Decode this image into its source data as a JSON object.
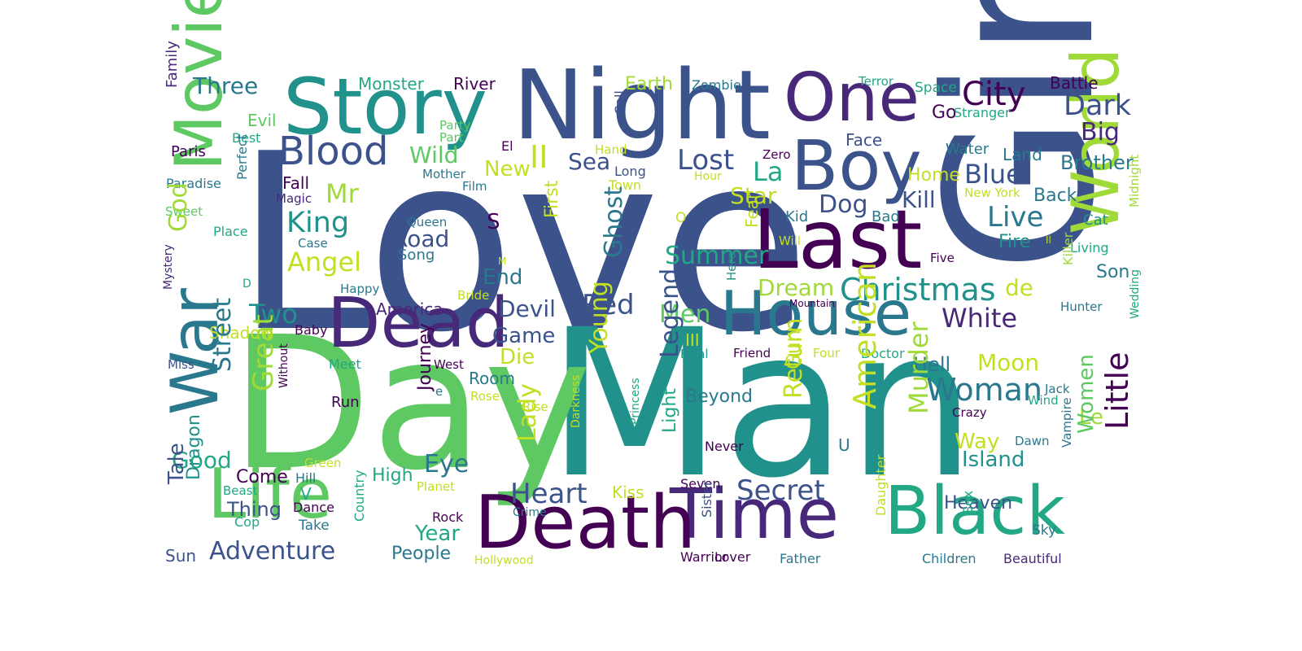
{
  "palette": {
    "p1": "#440154",
    "p2": "#3b528b",
    "p3": "#21918c",
    "p4": "#22a884",
    "p5": "#5ec962",
    "p6": "#a0da39",
    "p7": "#c2df23",
    "p8": "#482878",
    "p9": "#2a788e"
  },
  "words": [
    {
      "text": "Love",
      "color": "p2",
      "v": false
    },
    {
      "text": "Man",
      "color": "p3",
      "v": false
    },
    {
      "text": "Day",
      "color": "p5",
      "v": false
    },
    {
      "text": "Girl",
      "color": "p2",
      "v": true
    },
    {
      "text": "Night",
      "color": "p2",
      "v": false
    },
    {
      "text": "Story",
      "color": "p3",
      "v": false
    },
    {
      "text": "One",
      "color": "p8",
      "v": false
    },
    {
      "text": "Boy",
      "color": "p2",
      "v": false
    },
    {
      "text": "Last",
      "color": "p1",
      "v": false
    },
    {
      "text": "Dead",
      "color": "p8",
      "v": false
    },
    {
      "text": "House",
      "color": "p9",
      "v": false
    },
    {
      "text": "Life",
      "color": "p5",
      "v": false
    },
    {
      "text": "Time",
      "color": "p8",
      "v": false
    },
    {
      "text": "Death",
      "color": "p1",
      "v": false
    },
    {
      "text": "Black",
      "color": "p4",
      "v": false
    },
    {
      "text": "World",
      "color": "p6",
      "v": true
    },
    {
      "text": "Movie",
      "color": "p5",
      "v": true
    },
    {
      "text": "War",
      "color": "p9",
      "v": true
    },
    {
      "text": "Blood",
      "color": "p2",
      "v": false
    },
    {
      "text": "Three",
      "color": "p9",
      "v": false
    },
    {
      "text": "Monster",
      "color": "p4",
      "v": false
    },
    {
      "text": "River",
      "color": "p1",
      "v": false
    },
    {
      "text": "Earth",
      "color": "p6",
      "v": false
    },
    {
      "text": "Zombie",
      "color": "p9",
      "v": false
    },
    {
      "text": "Terror",
      "color": "p4",
      "v": false
    },
    {
      "text": "Space",
      "color": "p4",
      "v": false
    },
    {
      "text": "Battle",
      "color": "p1",
      "v": false
    },
    {
      "text": "City",
      "color": "p1",
      "v": false
    },
    {
      "text": "Dark",
      "color": "p2",
      "v": false
    },
    {
      "text": "Big",
      "color": "p8",
      "v": false
    },
    {
      "text": "Brother",
      "color": "p9",
      "v": false
    },
    {
      "text": "Family",
      "color": "p8",
      "v": true
    },
    {
      "text": "Evil",
      "color": "p5",
      "v": false
    },
    {
      "text": "Best",
      "color": "p4",
      "v": false
    },
    {
      "text": "Paris",
      "color": "p1",
      "v": false
    },
    {
      "text": "Paradise",
      "color": "p9",
      "v": false
    },
    {
      "text": "Sweet",
      "color": "p5",
      "v": false
    },
    {
      "text": "Perfect",
      "color": "p9",
      "v": true
    },
    {
      "text": "Place",
      "color": "p4",
      "v": false
    },
    {
      "text": "God",
      "color": "p6",
      "v": true
    },
    {
      "text": "Mystery",
      "color": "p8",
      "v": true
    },
    {
      "text": "D",
      "color": "p4",
      "v": false
    },
    {
      "text": "Miss",
      "color": "p2",
      "v": false
    },
    {
      "text": "Party",
      "color": "p5",
      "v": false
    },
    {
      "text": "Part",
      "color": "p5",
      "v": false
    },
    {
      "text": "El",
      "color": "p1",
      "v": false
    },
    {
      "text": "Call",
      "color": "p2",
      "v": true
    },
    {
      "text": "Hand",
      "color": "p7",
      "v": false
    },
    {
      "text": "Zero",
      "color": "p1",
      "v": false
    },
    {
      "text": "Face",
      "color": "p2",
      "v": false
    },
    {
      "text": "Go",
      "color": "p1",
      "v": false
    },
    {
      "text": "Stranger",
      "color": "p4",
      "v": false
    },
    {
      "text": "Water",
      "color": "p9",
      "v": false
    },
    {
      "text": "Land",
      "color": "p9",
      "v": false
    },
    {
      "text": "Wild",
      "color": "p5",
      "v": false
    },
    {
      "text": "II",
      "color": "p7",
      "v": false
    },
    {
      "text": "New",
      "color": "p7",
      "v": false
    },
    {
      "text": "Sea",
      "color": "p2",
      "v": false
    },
    {
      "text": "Lost",
      "color": "p2",
      "v": false
    },
    {
      "text": "Long",
      "color": "p2",
      "v": false
    },
    {
      "text": "Mother",
      "color": "p9",
      "v": false
    },
    {
      "text": "Hour",
      "color": "p7",
      "v": false
    },
    {
      "text": "La",
      "color": "p4",
      "v": false
    },
    {
      "text": "Blue",
      "color": "p2",
      "v": false
    },
    {
      "text": "Home",
      "color": "p7",
      "v": false
    },
    {
      "text": "Fall",
      "color": "p1",
      "v": false
    },
    {
      "text": "Magic",
      "color": "p8",
      "v": false
    },
    {
      "text": "Mr",
      "color": "p6",
      "v": false
    },
    {
      "text": "Film",
      "color": "p9",
      "v": false
    },
    {
      "text": "Town",
      "color": "p7",
      "v": false
    },
    {
      "text": "Star",
      "color": "p7",
      "v": false
    },
    {
      "text": "Kill",
      "color": "p2",
      "v": false
    },
    {
      "text": "New York",
      "color": "p7",
      "v": false
    },
    {
      "text": "Back",
      "color": "p9",
      "v": false
    },
    {
      "text": "Dog",
      "color": "p2",
      "v": false
    },
    {
      "text": "King",
      "color": "p3",
      "v": false
    },
    {
      "text": "Queen",
      "color": "p9",
      "v": false
    },
    {
      "text": "S",
      "color": "p1",
      "v": false
    },
    {
      "text": "First",
      "color": "p7",
      "v": true
    },
    {
      "text": "O",
      "color": "p7",
      "v": false
    },
    {
      "text": "Fear",
      "color": "p7",
      "v": true
    },
    {
      "text": "Kid",
      "color": "p9",
      "v": false
    },
    {
      "text": "Bad",
      "color": "p9",
      "v": false
    },
    {
      "text": "Live",
      "color": "p9",
      "v": false
    },
    {
      "text": "Cat",
      "color": "p3",
      "v": false
    },
    {
      "text": "Midnight",
      "color": "p6",
      "v": true
    },
    {
      "text": "Case",
      "color": "p9",
      "v": false
    },
    {
      "text": "Road",
      "color": "p2",
      "v": false
    },
    {
      "text": "Song",
      "color": "p9",
      "v": false
    },
    {
      "text": "Will",
      "color": "p7",
      "v": false
    },
    {
      "text": "Fire",
      "color": "p3",
      "v": false
    },
    {
      "text": "Il",
      "color": "p7",
      "v": false
    },
    {
      "text": "Living",
      "color": "p4",
      "v": false
    },
    {
      "text": "Angel",
      "color": "p7",
      "v": false
    },
    {
      "text": "M",
      "color": "p7",
      "v": false
    },
    {
      "text": "Ghost",
      "color": "p9",
      "v": true
    },
    {
      "text": "Summer",
      "color": "p4",
      "v": false
    },
    {
      "text": "Five",
      "color": "p1",
      "v": false
    },
    {
      "text": "Killer",
      "color": "p6",
      "v": true
    },
    {
      "text": "Son",
      "color": "p9",
      "v": false
    },
    {
      "text": "End",
      "color": "p9",
      "v": false
    },
    {
      "text": "Happy",
      "color": "p9",
      "v": false
    },
    {
      "text": "Bride",
      "color": "p7",
      "v": false
    },
    {
      "text": "Dream",
      "color": "p6",
      "v": false
    },
    {
      "text": "Christmas",
      "color": "p3",
      "v": false
    },
    {
      "text": "de",
      "color": "p7",
      "v": false
    },
    {
      "text": "Hero",
      "color": "p3",
      "v": true
    },
    {
      "text": "Mountain",
      "color": "p1",
      "v": false
    },
    {
      "text": "Hunter",
      "color": "p9",
      "v": false
    },
    {
      "text": "America",
      "color": "p8",
      "v": false
    },
    {
      "text": "Devil",
      "color": "p2",
      "v": false
    },
    {
      "text": "Red",
      "color": "p2",
      "v": false
    },
    {
      "text": "Men",
      "color": "p5",
      "v": false
    },
    {
      "text": "White",
      "color": "p8",
      "v": false
    },
    {
      "text": "Wedding",
      "color": "p4",
      "v": true
    },
    {
      "text": "Two",
      "color": "p3",
      "v": false
    },
    {
      "text": "Baby",
      "color": "p1",
      "v": false
    },
    {
      "text": "Shadow",
      "color": "p7",
      "v": false
    },
    {
      "text": "Game",
      "color": "p2",
      "v": false
    },
    {
      "text": "III",
      "color": "p7",
      "v": false
    },
    {
      "text": "Final",
      "color": "p3",
      "v": false
    },
    {
      "text": "Friend",
      "color": "p1",
      "v": false
    },
    {
      "text": "Four",
      "color": "p7",
      "v": false
    },
    {
      "text": "Doctor",
      "color": "p4",
      "v": false
    },
    {
      "text": "Meet",
      "color": "p4",
      "v": false
    },
    {
      "text": "West",
      "color": "p1",
      "v": false
    },
    {
      "text": "Die",
      "color": "p7",
      "v": false
    },
    {
      "text": "Young",
      "color": "p7",
      "v": true
    },
    {
      "text": "Legend",
      "color": "p2",
      "v": true
    },
    {
      "text": "Gun",
      "color": "p7",
      "v": true
    },
    {
      "text": "Hell",
      "color": "p9",
      "v": false
    },
    {
      "text": "Moon",
      "color": "p7",
      "v": false
    },
    {
      "text": "Without",
      "color": "p1",
      "v": true
    },
    {
      "text": "Great",
      "color": "p6",
      "v": true
    },
    {
      "text": "Street",
      "color": "p9",
      "v": true
    },
    {
      "text": "Room",
      "color": "p9",
      "v": false
    },
    {
      "text": "Journey",
      "color": "p1",
      "v": true
    },
    {
      "text": "e",
      "color": "p9",
      "v": false
    },
    {
      "text": "Rose",
      "color": "p7",
      "v": false
    },
    {
      "text": "Run",
      "color": "p1",
      "v": false
    },
    {
      "text": "Beyond",
      "color": "p9",
      "v": false
    },
    {
      "text": "Return",
      "color": "p7",
      "v": true
    },
    {
      "text": "American",
      "color": "p7",
      "v": true
    },
    {
      "text": "Woman",
      "color": "p9",
      "v": false
    },
    {
      "text": "Jack",
      "color": "p9",
      "v": false
    },
    {
      "text": "Wind",
      "color": "p4",
      "v": false
    },
    {
      "text": "Rise",
      "color": "p7",
      "v": false
    },
    {
      "text": "Murder",
      "color": "p6",
      "v": true
    },
    {
      "text": "Crazy",
      "color": "p1",
      "v": false
    },
    {
      "text": "Le",
      "color": "p6",
      "v": false
    },
    {
      "text": "Little",
      "color": "p1",
      "v": true
    },
    {
      "text": "Good",
      "color": "p4",
      "v": false
    },
    {
      "text": "Darkness",
      "color": "p7",
      "v": true
    },
    {
      "text": "Princess",
      "color": "p4",
      "v": true
    },
    {
      "text": "Light",
      "color": "p4",
      "v": true
    },
    {
      "text": "Lady",
      "color": "p7",
      "v": true
    },
    {
      "text": "Never",
      "color": "p1",
      "v": false
    },
    {
      "text": "U",
      "color": "p9",
      "v": false
    },
    {
      "text": "Way",
      "color": "p7",
      "v": false
    },
    {
      "text": "Dawn",
      "color": "p9",
      "v": false
    },
    {
      "text": "Women",
      "color": "p5",
      "v": true
    },
    {
      "text": "Vampire",
      "color": "p9",
      "v": true
    },
    {
      "text": "Eye",
      "color": "p9",
      "v": false
    },
    {
      "text": "Island",
      "color": "p3",
      "v": false
    },
    {
      "text": "Come",
      "color": "p1",
      "v": false
    },
    {
      "text": "Hill",
      "color": "p9",
      "v": false
    },
    {
      "text": "Green",
      "color": "p7",
      "v": false
    },
    {
      "text": "High",
      "color": "p4",
      "v": false
    },
    {
      "text": "Planet",
      "color": "p7",
      "v": false
    },
    {
      "text": "Tale",
      "color": "p2",
      "v": true
    },
    {
      "text": "Dragon",
      "color": "p3",
      "v": true
    },
    {
      "text": "Beast",
      "color": "p4",
      "v": false
    },
    {
      "text": "V",
      "color": "p4",
      "v": false
    },
    {
      "text": "Kiss",
      "color": "p7",
      "v": false
    },
    {
      "text": "Seven",
      "color": "p1",
      "v": false
    },
    {
      "text": "Heart",
      "color": "p2",
      "v": false
    },
    {
      "text": "Secret",
      "color": "p2",
      "v": false
    },
    {
      "text": "Heaven",
      "color": "p2",
      "v": false
    },
    {
      "text": "Thing",
      "color": "p2",
      "v": false
    },
    {
      "text": "Dance",
      "color": "p1",
      "v": false
    },
    {
      "text": "Cop",
      "color": "p4",
      "v": false
    },
    {
      "text": "Take",
      "color": "p9",
      "v": false
    },
    {
      "text": "Country",
      "color": "p4",
      "v": true
    },
    {
      "text": "Crime",
      "color": "p9",
      "v": false
    },
    {
      "text": "Rock",
      "color": "p1",
      "v": false
    },
    {
      "text": "Year",
      "color": "p4",
      "v": false
    },
    {
      "text": "Sister",
      "color": "p2",
      "v": true
    },
    {
      "text": "Daughter",
      "color": "p7",
      "v": true
    },
    {
      "text": "Sex",
      "color": "p4",
      "v": true
    },
    {
      "text": "Sky",
      "color": "p9",
      "v": false
    },
    {
      "text": "Sun",
      "color": "p2",
      "v": false
    },
    {
      "text": "Adventure",
      "color": "p2",
      "v": false
    },
    {
      "text": "People",
      "color": "p9",
      "v": false
    },
    {
      "text": "Hollywood",
      "color": "p7",
      "v": false
    },
    {
      "text": "Warrior",
      "color": "p1",
      "v": false
    },
    {
      "text": "Lover",
      "color": "p1",
      "v": false
    },
    {
      "text": "Father",
      "color": "p9",
      "v": false
    },
    {
      "text": "Children",
      "color": "p9",
      "v": false
    },
    {
      "text": "Beautiful",
      "color": "p8",
      "v": false
    }
  ]
}
